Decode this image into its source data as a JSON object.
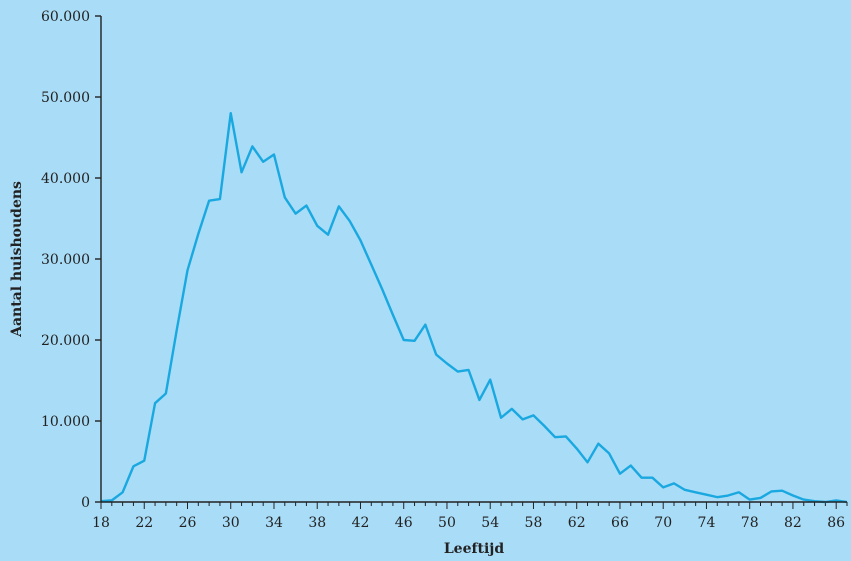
{
  "chart_data": {
    "type": "line",
    "title": "",
    "xlabel": "Leeftijd",
    "ylabel": "Aantal huishoudens",
    "xlim": [
      18,
      87
    ],
    "ylim": [
      0,
      60000
    ],
    "x_ticks": [
      18,
      22,
      26,
      30,
      34,
      38,
      42,
      46,
      50,
      54,
      58,
      62,
      66,
      70,
      74,
      78,
      82,
      86
    ],
    "y_ticks": [
      {
        "value": 0,
        "label": "0"
      },
      {
        "value": 10000,
        "label": "10.000"
      },
      {
        "value": 20000,
        "label": "20.000"
      },
      {
        "value": 30000,
        "label": "30.000"
      },
      {
        "value": 40000,
        "label": "40.000"
      },
      {
        "value": 50000,
        "label": "50.000"
      },
      {
        "value": 60000,
        "label": "60.000"
      }
    ],
    "grid": false,
    "line_color": "#1aa8e0",
    "series": [
      {
        "x": [
          18,
          19,
          20,
          21,
          22,
          23,
          24,
          25,
          26,
          27,
          28,
          29,
          30,
          31,
          32,
          33,
          34,
          35,
          36,
          37,
          38,
          39,
          40,
          41,
          42,
          43,
          44,
          45,
          46,
          47,
          48,
          49,
          50,
          51,
          52,
          53,
          54,
          55,
          56,
          57,
          58,
          59,
          60,
          61,
          62,
          63,
          64,
          65,
          66,
          67,
          68,
          69,
          70,
          71,
          72,
          73,
          74,
          75,
          76,
          77,
          78,
          79,
          80,
          81,
          82,
          83,
          84,
          85,
          86,
          87
        ],
        "y": [
          100,
          200,
          1200,
          4400,
          5100,
          12200,
          13400,
          21200,
          28600,
          33100,
          37200,
          37400,
          48000,
          40700,
          43900,
          42000,
          42900,
          37600,
          35600,
          36600,
          34100,
          33000,
          36500,
          34700,
          32300,
          29300,
          26300,
          23100,
          20000,
          19900,
          21900,
          18200,
          17100,
          16100,
          16300,
          12600,
          15100,
          10400,
          11500,
          10200,
          10700,
          9400,
          8000,
          8100,
          6600,
          4900,
          7200,
          6000,
          3500,
          4500,
          3000,
          3000,
          1800,
          2300,
          1500,
          1200,
          900,
          600,
          800,
          1200,
          300,
          500,
          1300,
          1400,
          800,
          300,
          100,
          0,
          200,
          0
        ]
      }
    ]
  }
}
